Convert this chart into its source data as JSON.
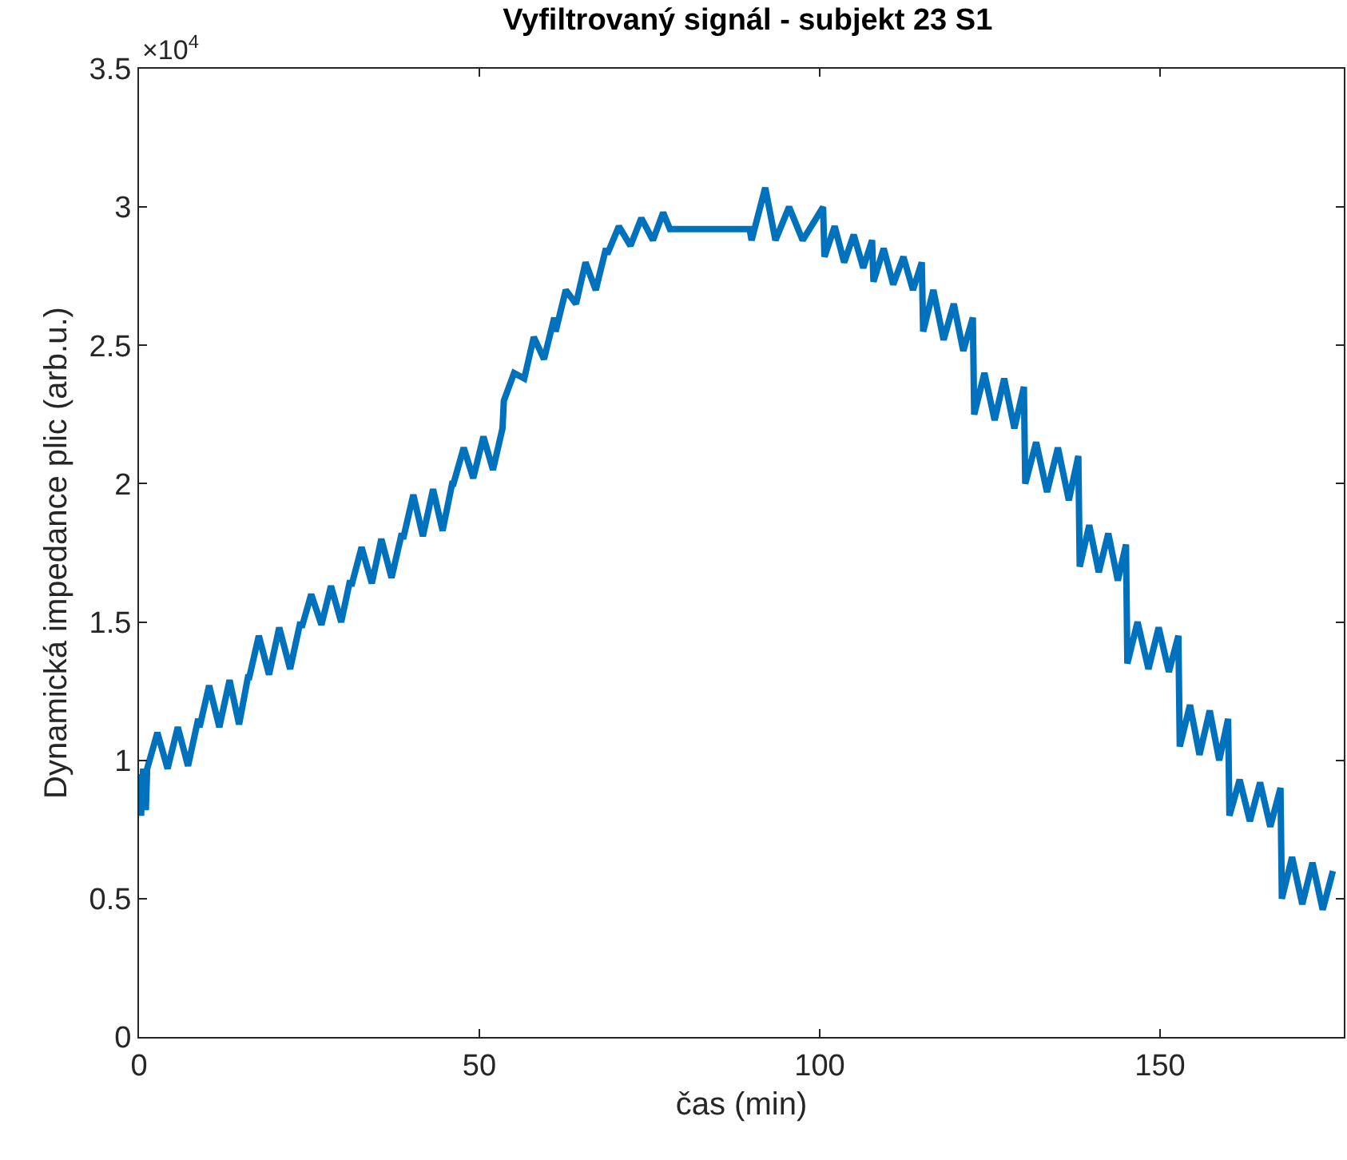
{
  "chart_data": {
    "type": "line",
    "title": "Vyfiltrovaný signál - subjekt 23 S1",
    "xlabel": "čas (min)",
    "ylabel": "Dynamická impedance plic (arb.u.)",
    "annotations": [
      "×10$^{4}$"
    ],
    "xlim": [
      0,
      177
    ],
    "xticks": [
      0,
      50,
      100,
      150
    ],
    "ylim": [
      0,
      3.5
    ],
    "yticks": [
      0,
      0.5,
      1,
      1.5,
      2,
      2.5,
      3,
      3.5
    ],
    "grid": false,
    "line_style": "solid",
    "marker": "none",
    "series": [
      {
        "color": "#0072bd",
        "x": [
          0,
          0.3,
          0.6,
          1,
          1.2,
          2.7,
          4.2,
          5.7,
          7.2,
          8.7,
          8.9,
          10.3,
          11.8,
          13.3,
          14.7,
          16,
          16.2,
          17.6,
          19.1,
          20.6,
          22.2,
          23.7,
          23.9,
          25.3,
          26.8,
          28.2,
          29.7,
          31,
          31.2,
          32.7,
          34.2,
          35.6,
          37.1,
          38.6,
          38.8,
          40.3,
          41.7,
          43.2,
          44.6,
          46,
          46.2,
          47.7,
          49.1,
          50.6,
          52,
          53.4,
          53.6,
          55.1,
          56.6,
          58,
          59.5,
          61,
          61.2,
          62.7,
          64.2,
          65.6,
          67.1,
          68.6,
          68.8,
          70.5,
          72.2,
          73.8,
          75.5,
          77,
          78,
          89.7,
          90,
          92,
          93.5,
          95.5,
          97.5,
          100.5,
          100.7,
          102.2,
          103.6,
          105,
          106.4,
          107.7,
          107.9,
          109.4,
          110.8,
          112.3,
          113.7,
          115,
          115.2,
          116.7,
          118.2,
          119.7,
          121.1,
          122.5,
          122.7,
          124.2,
          125.7,
          127.1,
          128.6,
          130,
          130.2,
          131.8,
          133.4,
          135,
          136.6,
          138,
          138.2,
          139.6,
          141,
          142.4,
          143.8,
          145,
          145.2,
          146.7,
          148.3,
          149.8,
          151.3,
          152.7,
          152.9,
          154.4,
          155.8,
          157.3,
          158.7,
          160,
          160.2,
          161.7,
          163.2,
          164.7,
          166.2,
          167.7,
          167.9,
          169.4,
          170.9,
          172.4,
          173.9,
          175.4
        ],
        "values": [
          0.95,
          0.8,
          0.97,
          0.82,
          0.97,
          1.1,
          0.97,
          1.12,
          0.98,
          1.15,
          1.12,
          1.27,
          1.12,
          1.29,
          1.13,
          1.3,
          1.3,
          1.45,
          1.31,
          1.48,
          1.33,
          1.5,
          1.48,
          1.6,
          1.49,
          1.63,
          1.5,
          1.65,
          1.63,
          1.77,
          1.64,
          1.8,
          1.66,
          1.82,
          1.8,
          1.96,
          1.81,
          1.98,
          1.83,
          2.0,
          2.0,
          2.13,
          2.02,
          2.17,
          2.05,
          2.2,
          2.3,
          2.4,
          2.38,
          2.53,
          2.45,
          2.6,
          2.55,
          2.7,
          2.65,
          2.8,
          2.7,
          2.85,
          2.83,
          2.93,
          2.86,
          2.96,
          2.88,
          2.98,
          2.92,
          2.92,
          2.88,
          3.07,
          2.88,
          3.0,
          2.88,
          3.0,
          2.82,
          2.93,
          2.8,
          2.9,
          2.78,
          2.88,
          2.73,
          2.85,
          2.72,
          2.82,
          2.7,
          2.8,
          2.55,
          2.7,
          2.52,
          2.65,
          2.48,
          2.6,
          2.25,
          2.4,
          2.23,
          2.38,
          2.2,
          2.35,
          2.0,
          2.15,
          1.97,
          2.13,
          1.94,
          2.1,
          1.7,
          1.85,
          1.68,
          1.82,
          1.65,
          1.78,
          1.35,
          1.5,
          1.33,
          1.48,
          1.32,
          1.45,
          1.05,
          1.2,
          1.02,
          1.18,
          1.0,
          1.15,
          0.8,
          0.93,
          0.78,
          0.92,
          0.76,
          0.9,
          0.5,
          0.65,
          0.48,
          0.63,
          0.46,
          0.6
        ]
      }
    ]
  }
}
